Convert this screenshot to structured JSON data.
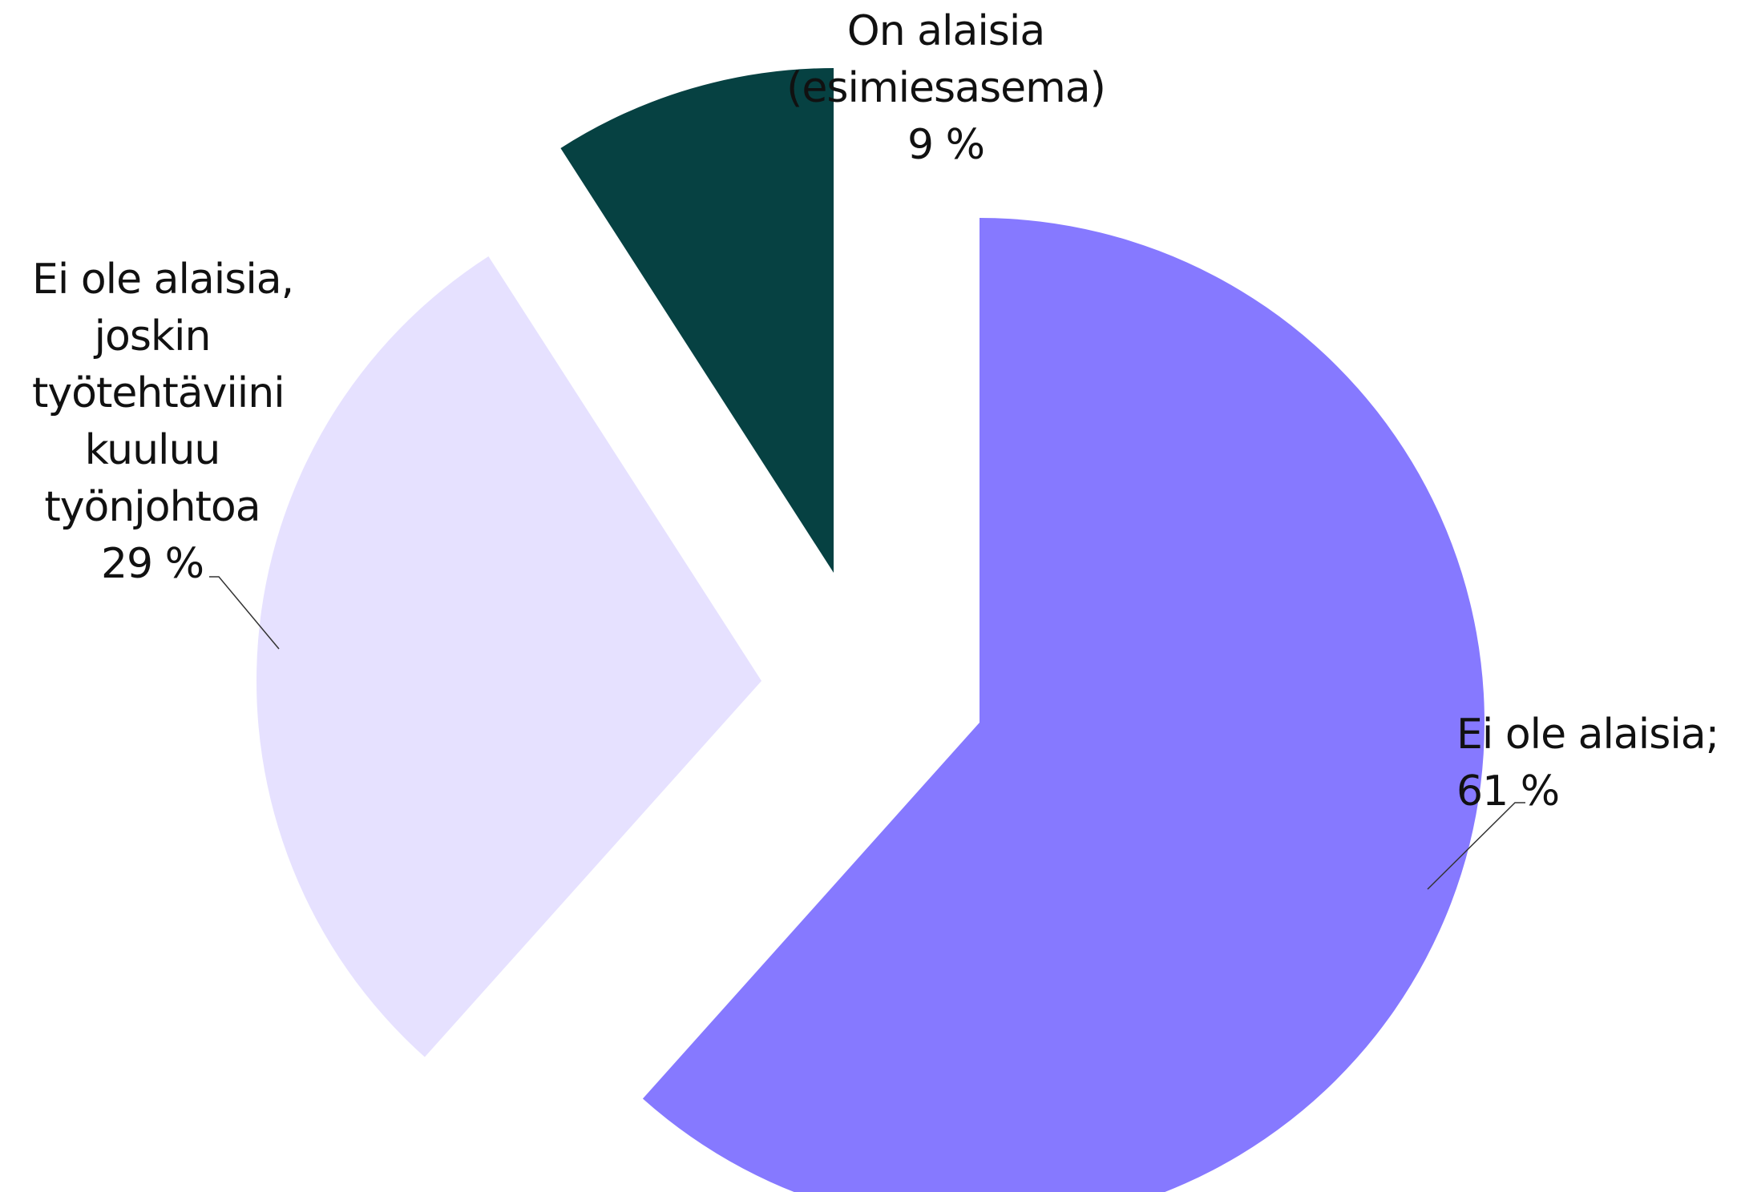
{
  "chart_data": {
    "type": "pie",
    "slices": [
      {
        "label_lines": [
          "Ei ole alaisia;",
          "61 %"
        ],
        "value": 61,
        "color": "#8679ff"
      },
      {
        "label_lines": [
          "Ei ole alaisia,",
          "joskin",
          "työtehtäviini",
          "kuuluu",
          "työnjohtoa",
          "29 %"
        ],
        "value": 29,
        "color": "#e6e1ff"
      },
      {
        "label_lines": [
          "On alaisia",
          "(esimiesasema)",
          "9 %"
        ],
        "value": 9,
        "color": "#064142"
      }
    ]
  }
}
